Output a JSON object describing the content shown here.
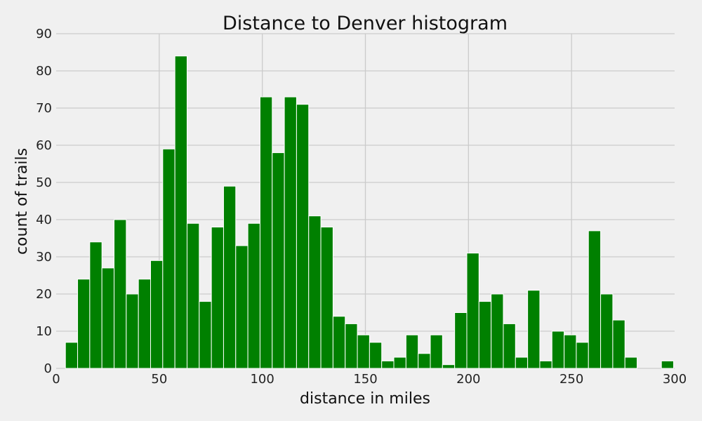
{
  "chart_data": {
    "type": "bar",
    "title": "Distance to Denver histogram",
    "xlabel": "distance in miles",
    "ylabel": "count of trails",
    "xlim": [
      0,
      300
    ],
    "ylim": [
      0,
      90
    ],
    "x_ticks": [
      0,
      50,
      100,
      150,
      200,
      250,
      300
    ],
    "y_ticks": [
      0,
      10,
      20,
      30,
      40,
      50,
      60,
      70,
      80,
      90
    ],
    "grid": true,
    "bar_color": "#008000",
    "bar_edge_color": "#ffffff",
    "background_color": "#f0f0f0",
    "grid_color": "#cbcbcb",
    "bin_edges": [
      4.5,
      10.4,
      16.3,
      22.2,
      28.1,
      34.0,
      39.9,
      45.8,
      51.7,
      57.6,
      63.5,
      69.4,
      75.3,
      81.2,
      87.1,
      93.0,
      98.9,
      104.8,
      110.7,
      116.6,
      122.5,
      128.4,
      134.3,
      140.2,
      146.1,
      152.0,
      157.9,
      163.8,
      169.7,
      175.6,
      181.5,
      187.4,
      193.3,
      199.2,
      205.1,
      211.0,
      216.9,
      222.8,
      228.7,
      234.6,
      240.5,
      246.4,
      252.3,
      258.2,
      264.1,
      270.0,
      275.9,
      281.8,
      287.7,
      293.6,
      299.5
    ],
    "values": [
      7,
      24,
      34,
      27,
      40,
      20,
      24,
      29,
      59,
      84,
      39,
      18,
      38,
      49,
      33,
      39,
      73,
      58,
      73,
      71,
      41,
      38,
      14,
      12,
      9,
      7,
      2,
      3,
      9,
      4,
      9,
      1,
      15,
      31,
      18,
      20,
      12,
      3,
      21,
      2,
      10,
      9,
      7,
      37,
      20,
      13,
      3,
      0,
      0,
      2
    ]
  }
}
